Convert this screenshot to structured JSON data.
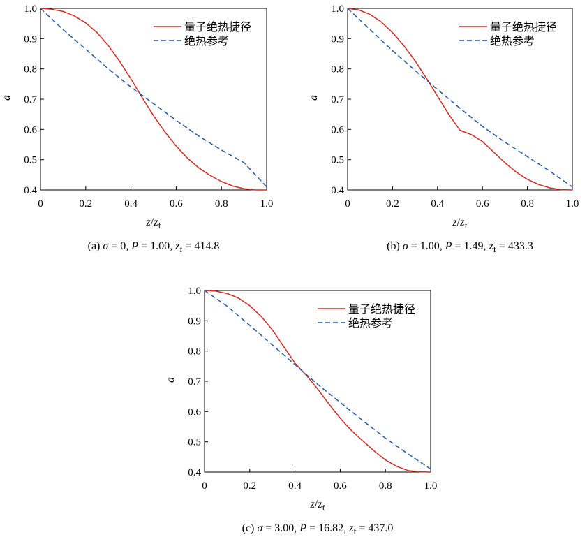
{
  "chart_data": [
    {
      "type": "line",
      "panel": "a",
      "caption": {
        "prefix": "(a) ",
        "sigma": "σ",
        "sigma_value": " = 0, ",
        "P": "P",
        "P_value": " = 1.00, ",
        "z": "z",
        "sub": "f",
        "z_value": " = 414.8"
      },
      "xlabel": {
        "a": "z",
        "b": "/",
        "c": "z",
        "sub": "f"
      },
      "ylabel": "a",
      "xlim": [
        0,
        1.0
      ],
      "ylim": [
        0.4,
        1.0
      ],
      "xticks": [
        "0",
        "0.2",
        "0.4",
        "0.6",
        "0.8",
        "1.0"
      ],
      "yticks": [
        "0.4",
        "0.5",
        "0.6",
        "0.7",
        "0.8",
        "0.9",
        "1.0"
      ],
      "legend_position": "top-right",
      "series": [
        {
          "name": "量子绝热捷径",
          "color": "#d42a20",
          "dash": "solid",
          "x": [
            0,
            0.05,
            0.1,
            0.15,
            0.2,
            0.25,
            0.3,
            0.35,
            0.4,
            0.45,
            0.5,
            0.55,
            0.6,
            0.65,
            0.7,
            0.75,
            0.8,
            0.85,
            0.9,
            0.95,
            1.0
          ],
          "y": [
            1.0,
            0.997,
            0.99,
            0.975,
            0.952,
            0.92,
            0.877,
            0.825,
            0.767,
            0.705,
            0.645,
            0.592,
            0.545,
            0.505,
            0.473,
            0.448,
            0.428,
            0.413,
            0.404,
            0.4,
            0.4
          ]
        },
        {
          "name": "绝热参考",
          "color": "#2159a8",
          "dash": "dashed",
          "x": [
            0,
            0.1,
            0.2,
            0.3,
            0.4,
            0.5,
            0.6,
            0.7,
            0.8,
            0.9,
            1.0
          ],
          "y": [
            1.0,
            0.93,
            0.865,
            0.8,
            0.74,
            0.685,
            0.63,
            0.578,
            0.532,
            0.49,
            0.41
          ]
        }
      ]
    },
    {
      "type": "line",
      "panel": "b",
      "caption": {
        "prefix": "(b) ",
        "sigma": "σ",
        "sigma_value": " = 1.00, ",
        "P": "P",
        "P_value": " = 1.49, ",
        "z": "z",
        "sub": "f",
        "z_value": " = 433.3"
      },
      "xlabel": {
        "a": "z",
        "b": "/",
        "c": "z",
        "sub": "f"
      },
      "ylabel": "a",
      "xlim": [
        0,
        1.0
      ],
      "ylim": [
        0.4,
        1.0
      ],
      "xticks": [
        "0",
        "0.2",
        "0.4",
        "0.6",
        "0.8",
        "1.0"
      ],
      "yticks": [
        "0.4",
        "0.5",
        "0.6",
        "0.7",
        "0.8",
        "0.9",
        "1.0"
      ],
      "legend_position": "top-right",
      "series": [
        {
          "name": "量子绝热捷径",
          "color": "#d42a20",
          "dash": "solid",
          "x": [
            0,
            0.05,
            0.1,
            0.15,
            0.2,
            0.25,
            0.3,
            0.35,
            0.4,
            0.45,
            0.5,
            0.55,
            0.6,
            0.65,
            0.7,
            0.75,
            0.8,
            0.85,
            0.9,
            0.95,
            1.0
          ],
          "y": [
            1.0,
            0.995,
            0.98,
            0.955,
            0.92,
            0.877,
            0.827,
            0.77,
            0.71,
            0.65,
            0.597,
            0.583,
            0.56,
            0.525,
            0.49,
            0.459,
            0.435,
            0.418,
            0.407,
            0.401,
            0.4
          ]
        },
        {
          "name": "绝热参考",
          "color": "#2159a8",
          "dash": "dashed",
          "x": [
            0,
            0.1,
            0.2,
            0.3,
            0.4,
            0.5,
            0.6,
            0.7,
            0.8,
            0.9,
            1.0
          ],
          "y": [
            1.0,
            0.93,
            0.86,
            0.795,
            0.732,
            0.67,
            0.61,
            0.558,
            0.51,
            0.462,
            0.41
          ]
        }
      ]
    },
    {
      "type": "line",
      "panel": "c",
      "caption": {
        "prefix": "(c) ",
        "sigma": "σ",
        "sigma_value": " = 3.00, ",
        "P": "P",
        "P_value": " = 16.82, ",
        "z": "z",
        "sub": "f",
        "z_value": " = 437.0"
      },
      "xlabel": {
        "a": "z",
        "b": "/",
        "c": "z",
        "sub": "f"
      },
      "ylabel": "a",
      "xlim": [
        0,
        1.0
      ],
      "ylim": [
        0.4,
        1.0
      ],
      "xticks": [
        "0",
        "0.2",
        "0.4",
        "0.6",
        "0.8",
        "1.0"
      ],
      "yticks": [
        "0.4",
        "0.5",
        "0.6",
        "0.7",
        "0.8",
        "0.9",
        "1.0"
      ],
      "legend_position": "top-right",
      "series": [
        {
          "name": "量子绝热捷径",
          "color": "#d42a20",
          "dash": "solid",
          "x": [
            0,
            0.05,
            0.1,
            0.15,
            0.2,
            0.25,
            0.3,
            0.35,
            0.4,
            0.45,
            0.5,
            0.55,
            0.6,
            0.65,
            0.7,
            0.75,
            0.8,
            0.85,
            0.9,
            0.95,
            1.0
          ],
          "y": [
            1.0,
            0.998,
            0.99,
            0.975,
            0.95,
            0.915,
            0.87,
            0.815,
            0.76,
            0.72,
            0.675,
            0.625,
            0.578,
            0.537,
            0.503,
            0.47,
            0.44,
            0.419,
            0.405,
            0.401,
            0.4
          ]
        },
        {
          "name": "绝热参考",
          "color": "#2159a8",
          "dash": "dashed",
          "x": [
            0,
            0.1,
            0.2,
            0.3,
            0.4,
            0.5,
            0.6,
            0.7,
            0.8,
            0.9,
            1.0
          ],
          "y": [
            1.0,
            0.948,
            0.885,
            0.82,
            0.755,
            0.69,
            0.63,
            0.57,
            0.512,
            0.46,
            0.41
          ]
        }
      ]
    }
  ]
}
